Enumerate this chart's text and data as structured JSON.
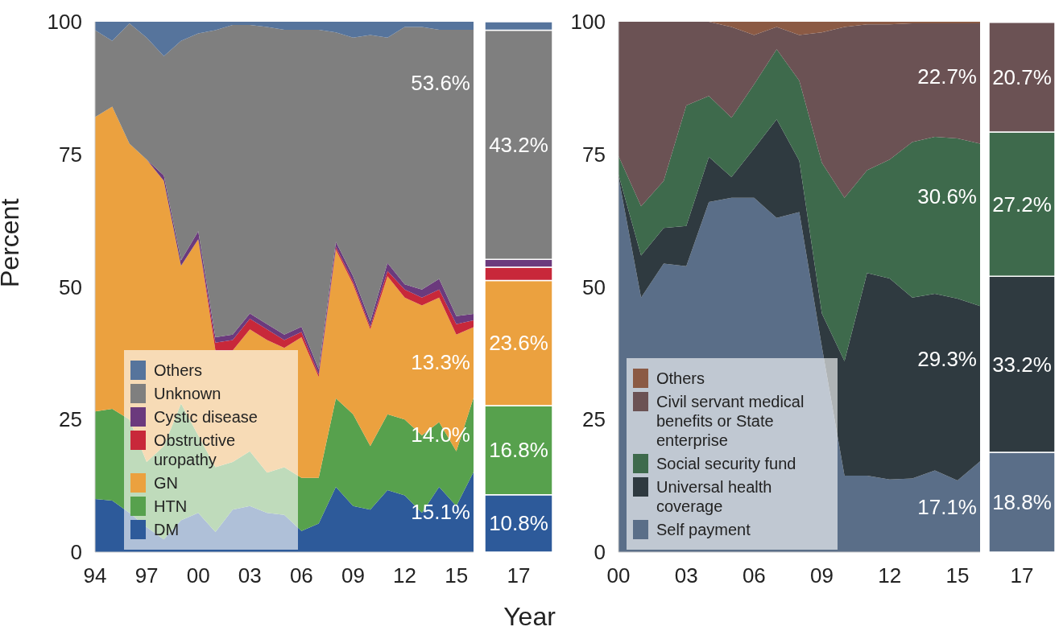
{
  "chart_data": [
    {
      "type": "area",
      "stacked": true,
      "ylabel": "Percent",
      "xlabel": "Year",
      "legend": "bottom left",
      "x": [
        1994,
        1995,
        1996,
        1997,
        1998,
        1999,
        2000,
        2001,
        2002,
        2003,
        2004,
        2005,
        2006,
        2007,
        2008,
        2009,
        2010,
        2011,
        2012,
        2013,
        2014,
        2015,
        2016
      ],
      "xlim": [
        1994,
        2016
      ],
      "xticks": [
        {
          "value": 1994,
          "label": "94"
        },
        {
          "value": 1997,
          "label": "97"
        },
        {
          "value": 2000,
          "label": "00"
        },
        {
          "value": 2003,
          "label": "03"
        },
        {
          "value": 2006,
          "label": "06"
        },
        {
          "value": 2009,
          "label": "09"
        },
        {
          "value": 2012,
          "label": "12"
        },
        {
          "value": 2015,
          "label": "15"
        }
      ],
      "ylim": [
        0,
        100
      ],
      "yticks": [
        0,
        25,
        50,
        75,
        100
      ],
      "series": [
        {
          "name": "DM",
          "color": "#2d5a9a",
          "values": [
            10,
            9.7,
            7.4,
            4.7,
            2.4,
            6,
            7.4,
            3.8,
            8,
            8.7,
            7.4,
            7,
            4,
            5.4,
            12.3,
            8.7,
            8,
            11.7,
            10.7,
            7.4,
            12.3,
            8.7,
            15.1
          ],
          "value_labels": [
            null,
            null,
            null,
            null,
            null,
            null,
            null,
            null,
            null,
            null,
            null,
            null,
            null,
            null,
            null,
            null,
            null,
            null,
            null,
            null,
            null,
            null,
            "15.1%"
          ]
        },
        {
          "name": "HTN",
          "color": "#57a14d",
          "values": [
            16.5,
            17.3,
            17.6,
            12.3,
            17.6,
            22,
            14.6,
            12.2,
            9,
            10.3,
            7.6,
            9,
            10,
            8.6,
            16.7,
            17.3,
            12,
            14.3,
            14.3,
            14.6,
            12.2,
            10.3,
            14
          ],
          "value_labels": [
            null,
            null,
            null,
            null,
            null,
            null,
            null,
            null,
            null,
            null,
            null,
            null,
            null,
            null,
            null,
            null,
            null,
            null,
            null,
            null,
            null,
            null,
            "14.0%"
          ]
        },
        {
          "name": "GN",
          "color": "#eba13f",
          "values": [
            55.5,
            57,
            52,
            57,
            50,
            26,
            37,
            22,
            21,
            23,
            25,
            22.5,
            26.5,
            19,
            28,
            24.5,
            22,
            26,
            23,
            24.5,
            23.5,
            22,
            13.3
          ],
          "value_labels": [
            null,
            null,
            null,
            null,
            null,
            null,
            null,
            null,
            null,
            null,
            null,
            null,
            null,
            null,
            null,
            null,
            null,
            null,
            null,
            null,
            null,
            null,
            "13.3%"
          ]
        },
        {
          "name": "Obstructive uropathy",
          "color": "#c8283a",
          "values": [
            0,
            0,
            0,
            0,
            0,
            0,
            0,
            1.5,
            2,
            2,
            2,
            1.5,
            1,
            0.5,
            0.5,
            0.5,
            0.5,
            1,
            1.5,
            1.5,
            1.5,
            2,
            1.3
          ]
        },
        {
          "name": "Cystic disease",
          "color": "#6b3a7d",
          "values": [
            0,
            0,
            0,
            0,
            1,
            1,
            1.5,
            1,
            1,
            1,
            1,
            1,
            1,
            1,
            1,
            1,
            1,
            1.5,
            1,
            1.5,
            2,
            1.5,
            1.2
          ]
        },
        {
          "name": "Unknown",
          "color": "#7f7f7f",
          "values": [
            16.4,
            12.4,
            22.7,
            23,
            22.5,
            41.4,
            37.3,
            57.9,
            58.4,
            54.4,
            56,
            57.5,
            56,
            64,
            39.5,
            45,
            54,
            42.5,
            48.5,
            49.5,
            47,
            54,
            53.6
          ],
          "value_labels": [
            null,
            null,
            null,
            null,
            null,
            null,
            null,
            null,
            null,
            null,
            null,
            null,
            null,
            null,
            null,
            null,
            null,
            null,
            null,
            null,
            null,
            null,
            "53.6%"
          ]
        },
        {
          "name": "Others",
          "color": "#56749c",
          "values": [
            1.6,
            3.6,
            0.3,
            3,
            6.5,
            3.6,
            2.2,
            1.6,
            0.6,
            0.6,
            1,
            1.5,
            1.5,
            1.5,
            2,
            3,
            2.5,
            3,
            1,
            1,
            1.5,
            1.5,
            1.5
          ]
        }
      ]
    },
    {
      "type": "bar",
      "stacked": true,
      "categories": [
        "17"
      ],
      "ylim": [
        0,
        100
      ],
      "tick_labels": "x",
      "series": [
        {
          "color": "#2d5a9a",
          "values": [
            10.8
          ],
          "value_labels": [
            "10.8%"
          ]
        },
        {
          "color": "#57a14d",
          "values": [
            16.8
          ],
          "value_labels": [
            "16.8%"
          ]
        },
        {
          "color": "#eba13f",
          "values": [
            23.6
          ],
          "value_labels": [
            "23.6%"
          ]
        },
        {
          "color": "#c8283a",
          "values": [
            2.5
          ]
        },
        {
          "color": "#6b3a7d",
          "values": [
            1.5
          ]
        },
        {
          "color": "#7f7f7f",
          "values": [
            43.2
          ],
          "value_labels": [
            "43.2%"
          ]
        },
        {
          "color": "#56749c",
          "values": [
            1.6
          ]
        }
      ]
    },
    {
      "type": "area",
      "stacked": true,
      "legend": "bottom left",
      "x": [
        2000,
        2001,
        2002,
        2003,
        2004,
        2005,
        2006,
        2007,
        2008,
        2009,
        2010,
        2011,
        2012,
        2013,
        2014,
        2015,
        2016
      ],
      "xlim": [
        2000,
        2016
      ],
      "xticks": [
        {
          "value": 2000,
          "label": "00"
        },
        {
          "value": 2003,
          "label": "03"
        },
        {
          "value": 2006,
          "label": "06"
        },
        {
          "value": 2009,
          "label": "09"
        },
        {
          "value": 2012,
          "label": "12"
        },
        {
          "value": 2015,
          "label": "15"
        }
      ],
      "ylim": [
        0,
        100
      ],
      "yticks": [
        0,
        25,
        50,
        75,
        100
      ],
      "series": [
        {
          "name": "Self payment",
          "color": "#5a6e88",
          "values": [
            70.7,
            48,
            54.4,
            53.9,
            66,
            66.8,
            66.8,
            63,
            64.1,
            38.7,
            14.4,
            14.4,
            13.7,
            13.9,
            15.4,
            13.5,
            17.1
          ],
          "value_labels": [
            null,
            null,
            null,
            null,
            null,
            null,
            null,
            null,
            null,
            null,
            null,
            null,
            null,
            null,
            null,
            null,
            "17.1%"
          ]
        },
        {
          "name": "Universal health coverage",
          "color": "#2f3a40",
          "values": [
            0.5,
            7.9,
            6.7,
            7.6,
            8.5,
            3.9,
            9.3,
            18.6,
            9.7,
            6.3,
            21.6,
            38.2,
            37.9,
            34.1,
            33.3,
            34.3,
            29.3
          ],
          "value_labels": [
            null,
            null,
            null,
            null,
            null,
            null,
            null,
            null,
            null,
            null,
            null,
            null,
            null,
            null,
            null,
            null,
            "29.3%"
          ]
        },
        {
          "name": "Social security fund",
          "color": "#3e6a4c",
          "values": [
            3.5,
            9.3,
            8.9,
            22.7,
            11.5,
            11.2,
            12.1,
            13.2,
            15.1,
            28.4,
            30.8,
            19.4,
            22.4,
            29.3,
            29.6,
            30.2,
            30.6
          ],
          "value_labels": [
            null,
            null,
            null,
            null,
            null,
            null,
            null,
            null,
            null,
            null,
            null,
            null,
            null,
            null,
            null,
            null,
            "30.6%"
          ]
        },
        {
          "name": "Civil servant medical benefits or State enterprise",
          "color": "#6b5254",
          "values": [
            25.3,
            34.8,
            30,
            15.8,
            14,
            17.1,
            9.3,
            4.2,
            8.6,
            24.6,
            32.2,
            27.5,
            25.5,
            22.4,
            21.4,
            21.7,
            22.7
          ],
          "value_labels": [
            null,
            null,
            null,
            null,
            null,
            null,
            null,
            null,
            null,
            null,
            null,
            null,
            null,
            null,
            null,
            null,
            "22.7%"
          ]
        },
        {
          "name": "Others",
          "color": "#8b5a44",
          "values": [
            0,
            0,
            0,
            0,
            0,
            1,
            2.5,
            1,
            2.5,
            2,
            1,
            0.5,
            0.5,
            0.3,
            0.3,
            0.3,
            0.3
          ]
        }
      ]
    },
    {
      "type": "bar",
      "stacked": true,
      "categories": [
        "17"
      ],
      "ylim": [
        0,
        100
      ],
      "tick_labels": "x",
      "series": [
        {
          "color": "#5a6e88",
          "values": [
            18.8
          ],
          "value_labels": [
            "18.8%"
          ]
        },
        {
          "color": "#2f3a40",
          "values": [
            33.2
          ],
          "value_labels": [
            "33.2%"
          ]
        },
        {
          "color": "#3e6a4c",
          "values": [
            27.2
          ],
          "value_labels": [
            "27.2%"
          ]
        },
        {
          "color": "#6b5254",
          "values": [
            20.7
          ],
          "value_labels": [
            "20.7%"
          ]
        },
        {
          "color": "#8b5a44",
          "values": [
            null
          ]
        }
      ]
    }
  ]
}
